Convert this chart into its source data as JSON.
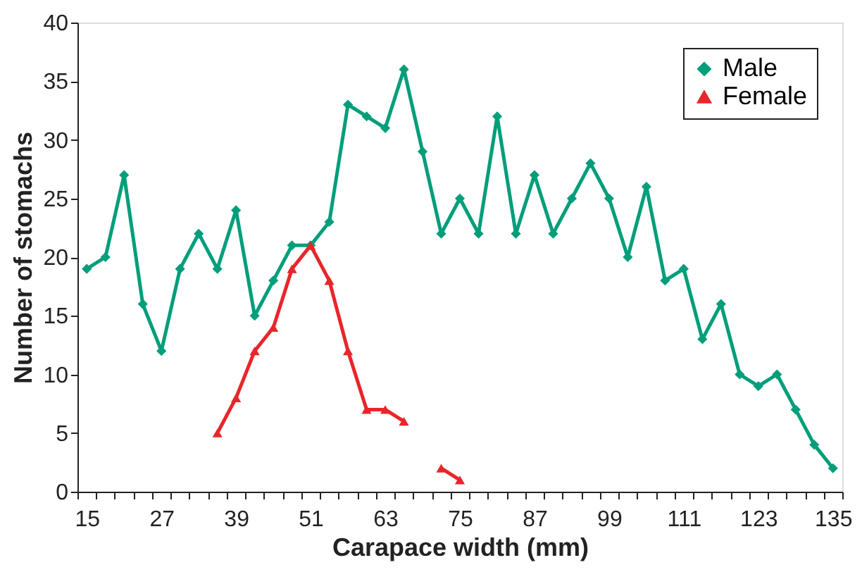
{
  "chart_data": {
    "type": "line",
    "xlabel": "Carapace width (mm)",
    "ylabel": "Number of stomachs",
    "categories": [
      "15",
      null,
      null,
      null,
      "27",
      null,
      null,
      null,
      "39",
      null,
      null,
      null,
      "51",
      null,
      null,
      null,
      "63",
      null,
      null,
      null,
      "75",
      null,
      null,
      null,
      "87",
      null,
      null,
      null,
      "99",
      null,
      null,
      null,
      "111",
      null,
      null,
      null,
      "123",
      null,
      null,
      null,
      "135"
    ],
    "series": [
      {
        "name": "Male",
        "color": "#009e7a",
        "marker": "diamond",
        "values": [
          19,
          20,
          27,
          16,
          12,
          19,
          22,
          19,
          24,
          15,
          18,
          21,
          21,
          23,
          33,
          32,
          31,
          36,
          29,
          22,
          25,
          22,
          32,
          22,
          27,
          22,
          25,
          28,
          25,
          20,
          26,
          18,
          19,
          13,
          16,
          10,
          9,
          10,
          7,
          4,
          2
        ]
      },
      {
        "name": "Female",
        "color": "#e8262a",
        "marker": "triangle",
        "values": [
          null,
          null,
          null,
          null,
          null,
          null,
          null,
          5,
          8,
          12,
          14,
          19,
          21,
          18,
          12,
          7,
          7,
          6,
          null,
          2,
          1,
          null,
          null,
          null,
          null,
          null,
          null,
          null,
          null,
          null,
          null,
          null,
          null,
          null,
          null,
          null,
          null,
          null,
          null,
          null,
          null
        ]
      }
    ],
    "ylim": [
      0,
      40
    ],
    "yticks": [
      0,
      5,
      10,
      15,
      20,
      25,
      30,
      35,
      40
    ],
    "grid": false,
    "legend": "top right",
    "line_style": "solid"
  }
}
